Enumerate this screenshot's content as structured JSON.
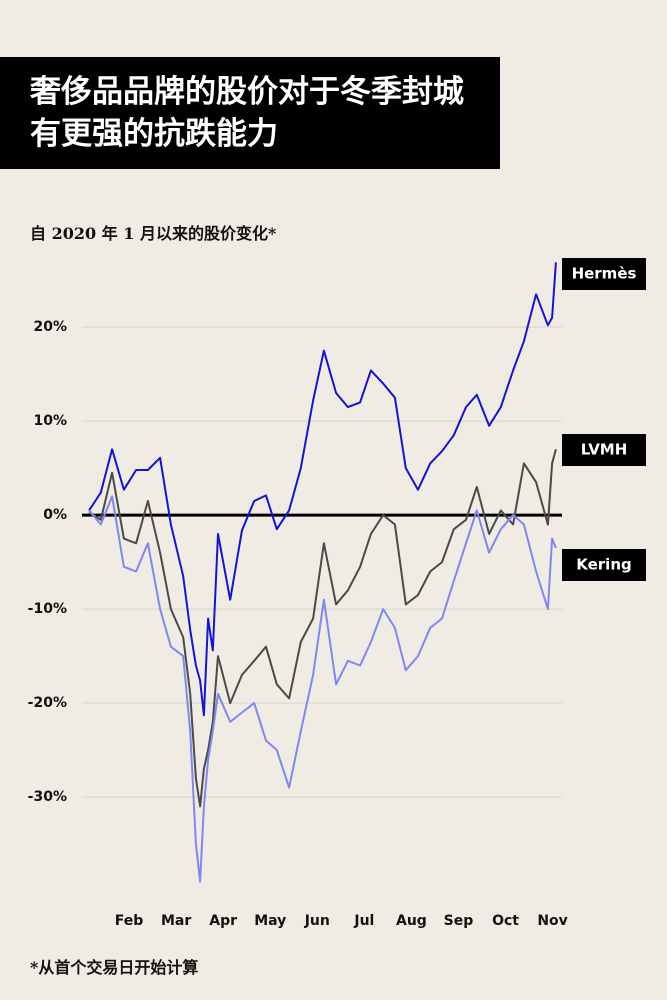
{
  "chart_data": {
    "type": "line",
    "title": "奢侈品品牌的股价对于冬季封城有更强的抗跌能力",
    "subtitle": "自 2020 年 1 月以来的股价变化*",
    "note": "*从首个交易日开始计算",
    "x": [
      0.15,
      0.4,
      0.64,
      0.89,
      1.15,
      1.4,
      1.66,
      1.89,
      2.15,
      2.3,
      2.42,
      2.51,
      2.59,
      2.68,
      2.78,
      2.89,
      3.15,
      3.4,
      3.66,
      3.91,
      4.14,
      4.4,
      4.65,
      4.91,
      5.14,
      5.4,
      5.65,
      5.91,
      6.14,
      6.4,
      6.65,
      6.88,
      7.14,
      7.4,
      7.65,
      7.9,
      8.16,
      8.39,
      8.65,
      8.9,
      9.16,
      9.39,
      9.65,
      9.9,
      9.99,
      10.07
    ],
    "series": [
      {
        "name": "Hermès",
        "color": "#1414d8",
        "values": [
          0.5,
          2.4,
          7.0,
          2.7,
          4.8,
          4.8,
          6.1,
          -1.0,
          -6.5,
          -12.2,
          -16.0,
          -17.6,
          -21.3,
          -11.0,
          -14.4,
          -2.0,
          -9.0,
          -1.6,
          1.5,
          2.1,
          -1.5,
          0.5,
          5.0,
          12.2,
          17.5,
          13.0,
          11.5,
          12.0,
          15.4,
          14.0,
          12.5,
          5.0,
          2.7,
          5.5,
          6.8,
          8.5,
          11.5,
          12.8,
          9.5,
          11.5,
          15.4,
          18.5,
          23.5,
          20.2,
          21.0,
          26.9
        ]
      },
      {
        "name": "LVMH",
        "color": "#4a4a4a",
        "values": [
          0.3,
          -0.5,
          4.5,
          -2.5,
          -3.0,
          1.5,
          -4.0,
          -10.0,
          -13.0,
          -19.0,
          -28.0,
          -31.0,
          -27.0,
          -25.0,
          -22.0,
          -15.0,
          -20.0,
          -17.0,
          -15.5,
          -14.0,
          -18.0,
          -19.5,
          -13.5,
          -11.0,
          -3.0,
          -9.5,
          -8.0,
          -5.5,
          -2.0,
          0.0,
          -1.0,
          -9.5,
          -8.5,
          -6.0,
          -5.0,
          -1.5,
          -0.5,
          3.0,
          -2.0,
          0.5,
          -1.0,
          5.5,
          3.5,
          -1.0,
          5.5,
          7.0
        ]
      },
      {
        "name": "Kering",
        "color": "#7f86f5",
        "values": [
          0.5,
          -1.0,
          2.0,
          -5.5,
          -6.0,
          -3.0,
          -10.0,
          -14.0,
          -15.0,
          -23.0,
          -35.0,
          -39.0,
          -31.0,
          -26.0,
          -23.0,
          -19.0,
          -22.0,
          -21.0,
          -20.0,
          -24.0,
          -25.0,
          -29.0,
          -23.0,
          -17.0,
          -9.0,
          -18.0,
          -15.5,
          -16.0,
          -13.5,
          -10.0,
          -12.0,
          -16.5,
          -15.0,
          -12.0,
          -11.0,
          -7.0,
          -3.0,
          0.5,
          -4.0,
          -1.5,
          0.0,
          -1.0,
          -6.0,
          -10.0,
          -2.5,
          -3.5
        ]
      }
    ],
    "xlim": [
      0,
      10.2
    ],
    "xticks": [
      {
        "value": 1,
        "label": "Feb"
      },
      {
        "value": 2,
        "label": "Mar"
      },
      {
        "value": 3,
        "label": "Apr"
      },
      {
        "value": 4,
        "label": "May"
      },
      {
        "value": 5,
        "label": "Jun"
      },
      {
        "value": 6,
        "label": "Jul"
      },
      {
        "value": 7,
        "label": "Aug"
      },
      {
        "value": 8,
        "label": "Sep"
      },
      {
        "value": 9,
        "label": "Oct"
      },
      {
        "value": 10,
        "label": "Nov"
      }
    ],
    "ylim": [
      -40,
      28
    ],
    "yticks": [
      {
        "value": -30,
        "label": "-30%"
      },
      {
        "value": -20,
        "label": "-20%"
      },
      {
        "value": -10,
        "label": "-10%"
      },
      {
        "value": 0,
        "label": "0%"
      },
      {
        "value": 10,
        "label": "10%"
      },
      {
        "value": 20,
        "label": "20%"
      }
    ],
    "grid": true
  }
}
